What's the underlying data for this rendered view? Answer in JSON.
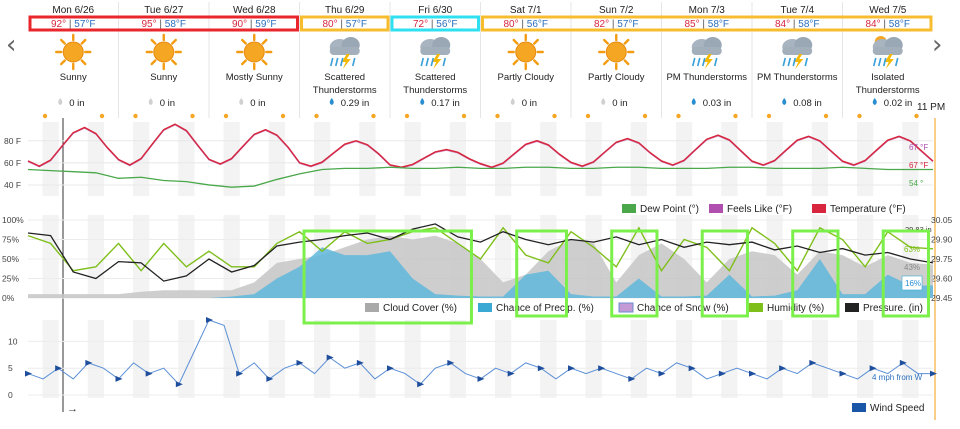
{
  "navigation": {
    "prev_label": "‹",
    "next_label": "›"
  },
  "days": [
    {
      "date": "Mon 6/26",
      "high": "92°",
      "low": "57°F",
      "condition": [
        "Sunny"
      ],
      "icon": "sunny-icon",
      "precip": "0 in"
    },
    {
      "date": "Tue 6/27",
      "high": "95°",
      "low": "58°F",
      "condition": [
        "Sunny"
      ],
      "icon": "sunny-icon",
      "precip": "0 in"
    },
    {
      "date": "Wed 6/28",
      "high": "90°",
      "low": "59°F",
      "condition": [
        "Mostly Sunny"
      ],
      "icon": "sunny-icon",
      "precip": "0 in"
    },
    {
      "date": "Thu 6/29",
      "high": "80°",
      "low": "57°F",
      "condition": [
        "Scattered",
        "Thunderstorms"
      ],
      "icon": "thunderstorm-icon",
      "precip": "0.29 in"
    },
    {
      "date": "Fri 6/30",
      "high": "72°",
      "low": "56°F",
      "condition": [
        "Scattered",
        "Thunderstorms"
      ],
      "icon": "thunderstorm-icon",
      "precip": "0.17 in"
    },
    {
      "date": "Sat 7/1",
      "high": "80°",
      "low": "56°F",
      "condition": [
        "Partly Cloudy"
      ],
      "icon": "partly-cloudy-icon",
      "precip": "0 in"
    },
    {
      "date": "Sun 7/2",
      "high": "82°",
      "low": "57°F",
      "condition": [
        "Partly Cloudy"
      ],
      "icon": "partly-cloudy-icon",
      "precip": "0 in"
    },
    {
      "date": "Mon 7/3",
      "high": "85°",
      "low": "58°F",
      "condition": [
        "PM Thunderstorms"
      ],
      "icon": "thunderstorm-icon",
      "precip": "0.03 in"
    },
    {
      "date": "Tue 7/4",
      "high": "84°",
      "low": "58°F",
      "condition": [
        "PM Thunderstorms"
      ],
      "icon": "thunderstorm-icon",
      "precip": "0.08 in"
    },
    {
      "date": "Wed 7/5",
      "high": "84°",
      "low": "58°F",
      "condition": [
        "Isolated",
        "Thunderstorms"
      ],
      "icon": "isolated-thunderstorm-icon",
      "precip": "0.02 in"
    }
  ],
  "time_label": "11 PM",
  "annotation_colors": {
    "red": "#e8262b",
    "yellow": "#f7bd2f",
    "cyan": "#2fe0f0",
    "green": "#7cf04a"
  },
  "highlight_boxes": [
    {
      "color": "red",
      "days": [
        0,
        2
      ]
    },
    {
      "color": "yellow",
      "days": [
        3,
        3
      ]
    },
    {
      "color": "cyan",
      "days": [
        4,
        4
      ]
    },
    {
      "color": "yellow",
      "days": [
        5,
        9
      ]
    }
  ],
  "green_boxes_days": [
    [
      3.05,
      4.9
    ],
    [
      5.4,
      5.95
    ],
    [
      6.45,
      6.95
    ],
    [
      7.45,
      7.95
    ],
    [
      8.45,
      8.95
    ],
    [
      9.45,
      9.95
    ]
  ],
  "chart_data": [
    {
      "type": "line",
      "panel": "temperature",
      "y_ticks": [
        "80 F",
        "60 F",
        "40 F"
      ],
      "ylim": [
        30,
        97
      ],
      "legend": [
        "Dew Point (°)",
        "Feels Like (°F)",
        "Temperature (°F)"
      ],
      "end_labels": [
        "67 °F",
        "67 °F",
        "54 °"
      ],
      "series": [
        {
          "name": "Temperature (°F)",
          "color": "#d7263d",
          "highs": [
            92,
            95,
            90,
            80,
            72,
            80,
            82,
            85,
            84,
            84
          ],
          "lows": [
            57,
            58,
            59,
            57,
            56,
            56,
            57,
            58,
            58,
            58
          ],
          "end": 67
        },
        {
          "name": "Feels Like (°F)",
          "color": "#b04fb0",
          "end": 67
        },
        {
          "name": "Dew Point (°)",
          "color": "#4aa84a",
          "values": [
            54,
            53,
            52,
            51,
            46,
            47,
            44,
            43,
            40,
            38,
            39,
            45,
            50,
            54,
            55,
            55,
            56,
            55,
            55,
            56,
            55,
            55,
            56,
            56,
            55,
            55,
            56,
            56,
            55,
            55,
            55,
            56,
            56,
            55,
            55,
            55,
            56,
            55,
            54,
            54,
            54
          ],
          "end": 54
        }
      ]
    },
    {
      "type": "line",
      "panel": "sky",
      "y_ticks": [
        "100%",
        "75%",
        "50%",
        "25%",
        "0%"
      ],
      "right_ticks": [
        "30.05",
        "29.90",
        "29.75",
        "29.60",
        "29.45"
      ],
      "right_top_label": "29.83 in",
      "legend": [
        "Cloud Cover (%)",
        "Chance of Precip. (%)",
        "Chance of Snow (%)",
        "Humidity (%)",
        "Pressure. (in)"
      ],
      "end_labels": [
        "63%",
        "43%",
        "16%"
      ],
      "series": [
        {
          "name": "Cloud Cover (%)",
          "color": "#a9a9a9",
          "values": [
            5,
            5,
            5,
            5,
            5,
            8,
            10,
            10,
            10,
            10,
            20,
            45,
            50,
            55,
            65,
            75,
            80,
            75,
            80,
            70,
            50,
            20,
            30,
            60,
            75,
            70,
            20,
            55,
            70,
            50,
            20,
            50,
            60,
            55,
            30,
            60,
            55,
            40,
            55,
            45,
            43
          ]
        },
        {
          "name": "Chance of Precip. (%)",
          "color": "#3aa9d3",
          "values": [
            0,
            0,
            0,
            0,
            0,
            0,
            0,
            0,
            0,
            2,
            5,
            25,
            40,
            65,
            55,
            55,
            60,
            25,
            5,
            3,
            2,
            2,
            30,
            35,
            5,
            2,
            2,
            25,
            2,
            2,
            3,
            30,
            2,
            3,
            10,
            50,
            5,
            5,
            30,
            16,
            16
          ]
        },
        {
          "name": "Chance of Snow (%)",
          "color": "#c49ad6",
          "values": [
            0,
            0,
            0,
            0,
            0,
            0,
            0,
            0,
            0,
            0,
            0,
            0,
            0,
            0,
            0,
            0,
            0,
            0,
            0,
            0,
            0,
            0,
            0,
            0,
            0,
            0,
            0,
            0,
            0,
            0,
            0,
            0,
            0,
            0,
            0,
            0,
            0,
            0,
            0,
            0,
            0
          ]
        },
        {
          "name": "Humidity (%)",
          "color": "#7fbf1c",
          "values": [
            80,
            70,
            35,
            40,
            70,
            35,
            70,
            40,
            60,
            40,
            40,
            70,
            85,
            60,
            85,
            70,
            75,
            85,
            90,
            70,
            50,
            90,
            55,
            45,
            85,
            65,
            40,
            90,
            35,
            75,
            65,
            35,
            90,
            70,
            35,
            90,
            75,
            40,
            85,
            65,
            63
          ]
        },
        {
          "name": "Pressure. (in)",
          "color": "#222222",
          "values": [
            29.95,
            29.93,
            29.65,
            29.6,
            29.73,
            29.72,
            29.58,
            29.62,
            29.75,
            29.65,
            29.7,
            29.85,
            29.88,
            29.9,
            29.93,
            29.95,
            29.9,
            29.98,
            30.02,
            29.92,
            29.88,
            29.96,
            29.9,
            29.86,
            29.9,
            29.88,
            29.92,
            29.86,
            29.9,
            29.84,
            29.88,
            29.86,
            29.88,
            29.82,
            29.85,
            29.8,
            29.83,
            29.78,
            29.8,
            29.75,
            29.72
          ]
        }
      ]
    },
    {
      "type": "line",
      "panel": "wind",
      "y_ticks": [
        "10",
        "5",
        "0"
      ],
      "legend": [
        "Wind Speed"
      ],
      "end_label": "4 mph from W",
      "series": [
        {
          "name": "Wind Speed",
          "color": "#5b8fd6",
          "values": [
            4,
            3,
            5,
            3,
            6,
            5,
            3,
            6,
            4,
            5,
            2,
            8,
            14,
            13,
            4,
            6,
            3,
            5,
            6,
            4,
            7,
            5,
            6,
            3,
            5,
            4,
            2,
            5,
            6,
            4,
            3,
            5,
            4,
            6,
            5,
            3,
            5,
            4,
            5,
            4,
            3,
            5,
            4,
            6,
            5,
            3,
            4,
            5,
            4,
            3,
            5,
            4,
            6,
            5,
            4,
            3,
            5,
            4,
            6,
            4,
            4
          ]
        }
      ]
    }
  ]
}
